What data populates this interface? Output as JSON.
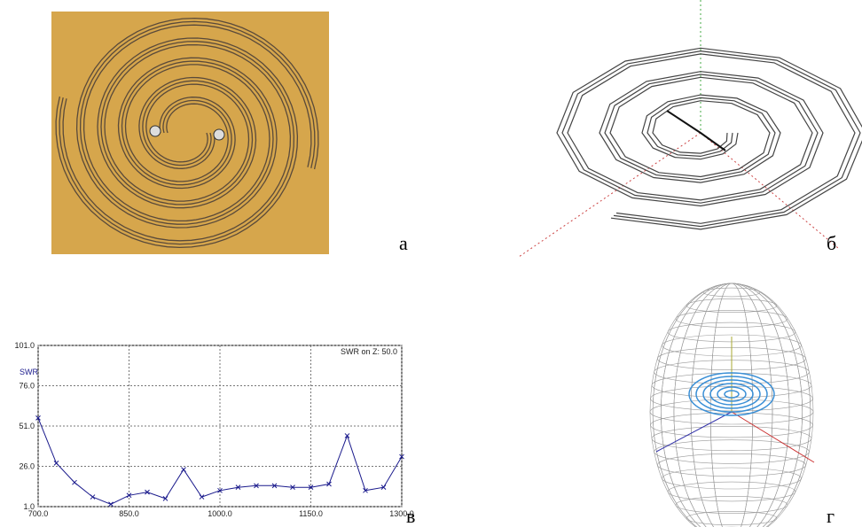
{
  "panel_labels": [
    "а",
    "б",
    "в",
    "г"
  ],
  "chart_data": {
    "type": "line",
    "annotation": "SWR on Z: 50.0",
    "y_label": "SWR",
    "x": [
      700,
      730,
      760,
      790,
      820,
      850,
      880,
      910,
      940,
      970,
      1000,
      1030,
      1060,
      1090,
      1120,
      1150,
      1180,
      1210,
      1240,
      1270,
      1300
    ],
    "series": [
      {
        "name": "SWR",
        "color": "#1a1a8c",
        "values": [
          56,
          28,
          16,
          7,
          2.5,
          8,
          10,
          6,
          24,
          7,
          11,
          13,
          14,
          14,
          13,
          13,
          15,
          45,
          11,
          13,
          32
        ]
      }
    ],
    "xlim": [
      700,
      1300
    ],
    "xticks": [
      {
        "value": 700,
        "label": "700.0"
      },
      {
        "value": 850,
        "label": "850.0"
      },
      {
        "value": 1000,
        "label": "1000.0"
      },
      {
        "value": 1150,
        "label": "1150.0"
      },
      {
        "value": 1300,
        "label": "1300.0"
      }
    ],
    "ylim": [
      1,
      101
    ],
    "yticks": [
      {
        "value": 1,
        "label": "1.0"
      },
      {
        "value": 26,
        "label": "26.0"
      },
      {
        "value": 51,
        "label": "51.0"
      },
      {
        "value": 76,
        "label": "76.0"
      },
      {
        "value": 101,
        "label": "101.0"
      }
    ],
    "grid": true
  }
}
